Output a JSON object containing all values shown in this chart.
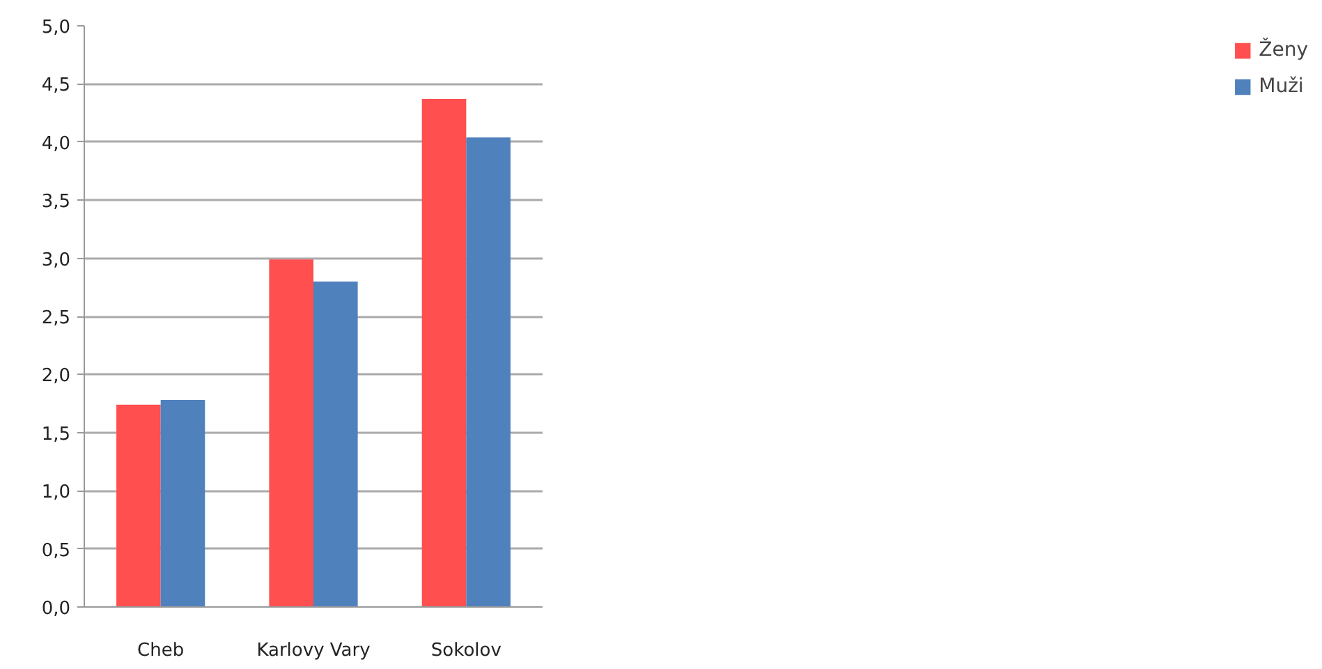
{
  "chart_data": {
    "type": "bar",
    "categories": [
      "Cheb",
      "Karlovy Vary",
      "Sokolov"
    ],
    "series": [
      {
        "name": "Ženy",
        "color": "#ff4f4f",
        "values": [
          1.74,
          2.99,
          4.37
        ]
      },
      {
        "name": "Muži",
        "color": "#4f81bd",
        "values": [
          1.78,
          2.8,
          4.04
        ]
      }
    ],
    "ylim": [
      0,
      5
    ],
    "yticks": [
      {
        "value": 0,
        "label": "0,0"
      },
      {
        "value": 0.5,
        "label": "0,5"
      },
      {
        "value": 1,
        "label": "1,0"
      },
      {
        "value": 1.5,
        "label": "1,5"
      },
      {
        "value": 2,
        "label": "2,0"
      },
      {
        "value": 2.5,
        "label": "2,5"
      },
      {
        "value": 3,
        "label": "3,0"
      },
      {
        "value": 3.5,
        "label": "3,5"
      },
      {
        "value": 4,
        "label": "4,0"
      },
      {
        "value": 4.5,
        "label": "4,5"
      },
      {
        "value": 5,
        "label": "5,0"
      }
    ],
    "grid": "y",
    "legend": "right"
  }
}
